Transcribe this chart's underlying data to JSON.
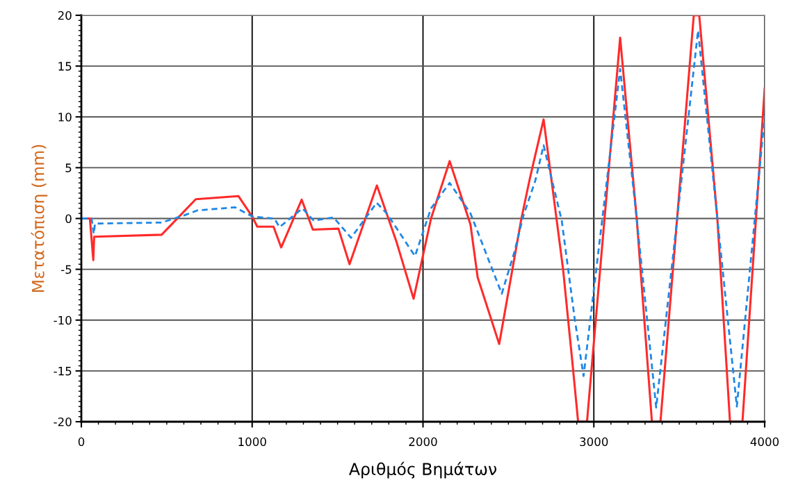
{
  "chart_data": {
    "type": "line",
    "xlabel": "Αριθμός Βημάτων",
    "ylabel": "Μετατόπιση (mm)",
    "xlim": [
      0,
      4000
    ],
    "xticks": [
      0,
      1000,
      2000,
      3000,
      4000
    ],
    "ylim": [
      -20,
      20
    ],
    "yticks": [
      -20,
      -15,
      -10,
      -5,
      0,
      5,
      10,
      15,
      20
    ],
    "grid": true,
    "legend": false,
    "series": [
      {
        "color": "#ff2a2a",
        "line_style": "solid",
        "x": [
          0,
          50,
          70,
          75,
          470,
          670,
          920,
          1000,
          1030,
          1125,
          1170,
          1290,
          1355,
          1505,
          1570,
          1730,
          1843,
          1945,
          2047,
          2156,
          2278,
          2320,
          2446,
          2576,
          2625,
          2706,
          2820,
          2873,
          2908,
          2960,
          3154,
          3251,
          3340,
          3390,
          3585,
          3617,
          3723,
          3797,
          3870,
          4000
        ],
        "values": [
          0,
          0,
          -4.1,
          -1.8,
          -1.6,
          1.9,
          2.2,
          0.2,
          -0.8,
          -0.8,
          -2.85,
          1.85,
          -1.1,
          -1.0,
          -4.5,
          3.25,
          -2.2,
          -7.9,
          0,
          5.65,
          -0.6,
          -5.8,
          -12.35,
          0,
          3.9,
          9.75,
          -5,
          -13.9,
          -20,
          -20,
          17.8,
          0,
          -20,
          -20,
          20,
          20,
          0,
          -20,
          -20,
          12.8
        ]
      },
      {
        "color": "#1e88e5",
        "line_style": "dashed",
        "x": [
          0,
          60,
          73,
          80,
          470,
          600,
          680,
          900,
          1000,
          1130,
          1160,
          1294,
          1360,
          1477,
          1579,
          1729,
          1790,
          1953,
          2047,
          2156,
          2278,
          2461,
          2535,
          2588,
          2657,
          2706,
          2812,
          2889,
          2940,
          3154,
          3251,
          3365,
          3610,
          3723,
          3837,
          4000
        ],
        "values": [
          0,
          0,
          -1.5,
          -0.5,
          -0.4,
          0.3,
          0.8,
          1.1,
          0.2,
          0,
          -0.85,
          1,
          -0.2,
          0.1,
          -1.9,
          1.55,
          0.45,
          -3.7,
          1,
          3.5,
          0.5,
          -7.4,
          -3.3,
          0.3,
          3.7,
          7.2,
          -0.2,
          -10,
          -15.5,
          14.7,
          0,
          -18.6,
          18.5,
          0,
          -18.5,
          10.1
        ]
      }
    ]
  }
}
